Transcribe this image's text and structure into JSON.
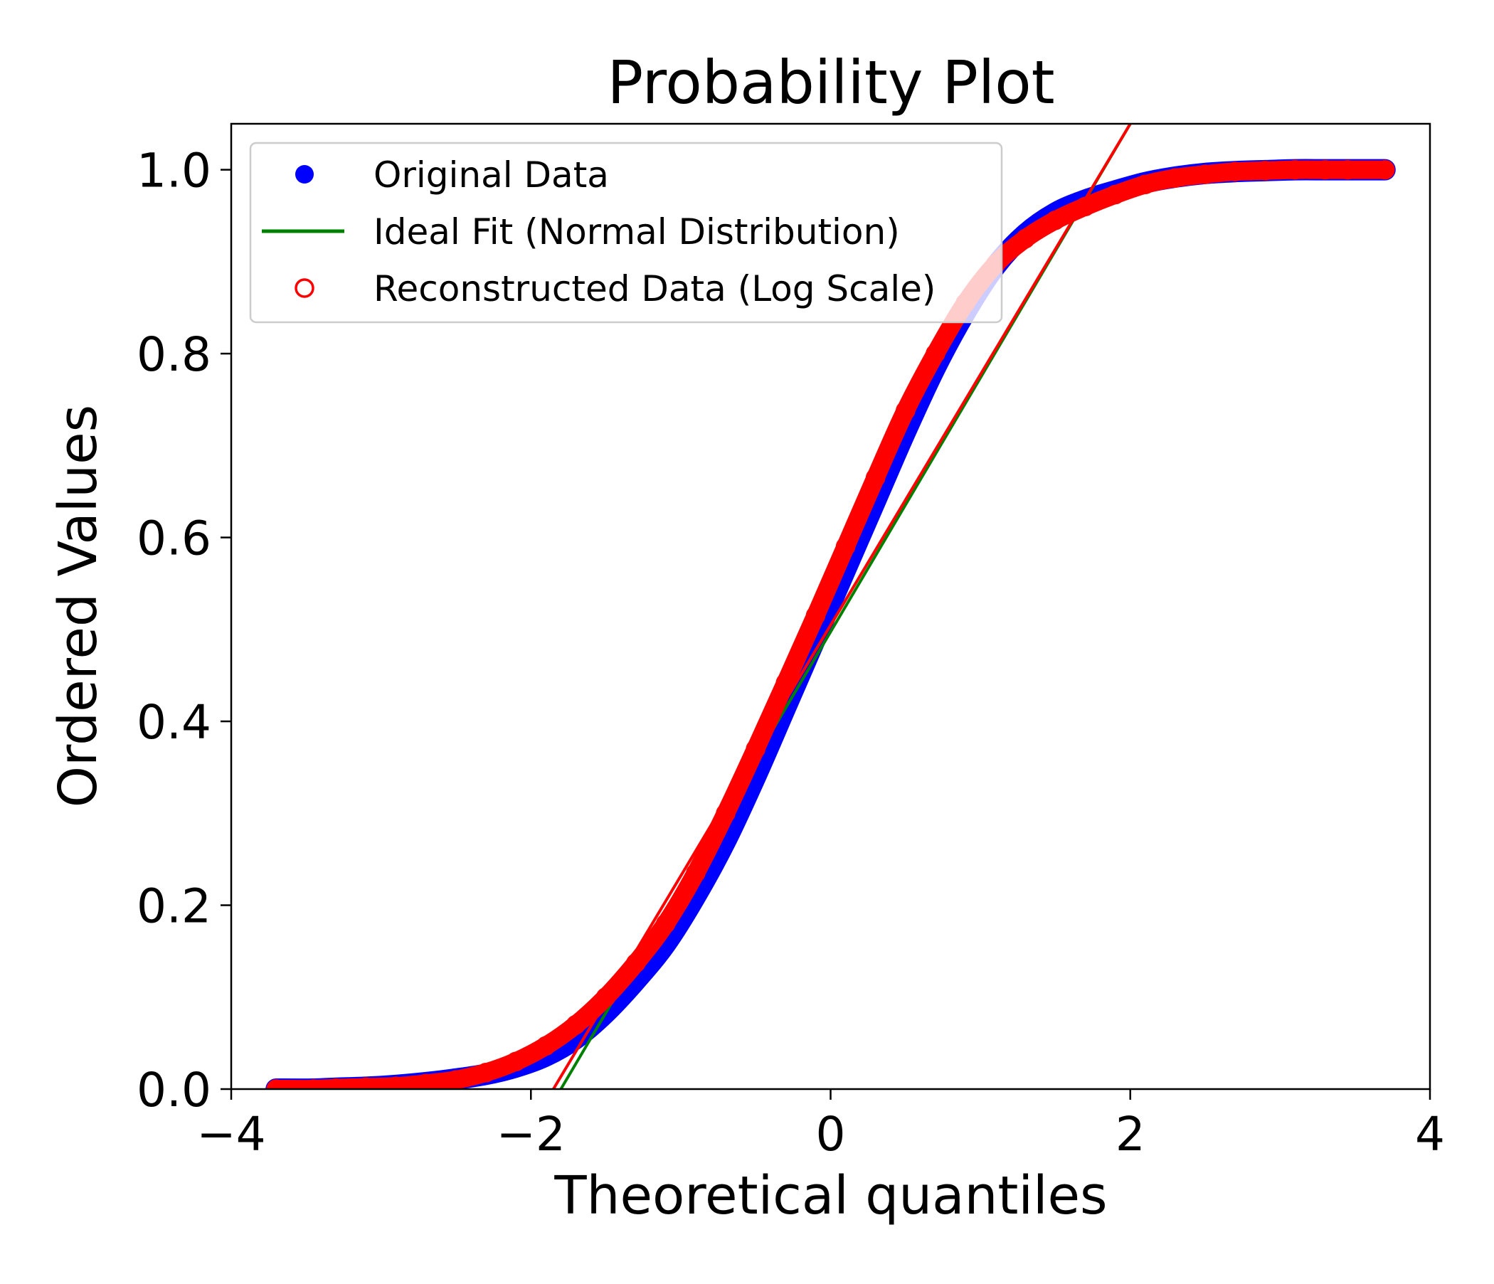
{
  "chart_data": {
    "type": "scatter",
    "title": "Probability Plot",
    "xlabel": "Theoretical quantiles",
    "ylabel": "Ordered Values",
    "xlim": [
      -4,
      4
    ],
    "ylim": [
      0,
      1.05
    ],
    "x_ticks": [
      -4,
      -2,
      0,
      2,
      4
    ],
    "y_ticks": [
      0.0,
      0.2,
      0.4,
      0.6,
      0.8,
      1.0
    ],
    "x_tick_labels": [
      "−4",
      "−2",
      "0",
      "2",
      "4"
    ],
    "y_tick_labels": [
      "0.0",
      "0.2",
      "0.4",
      "0.6",
      "0.8",
      "1.0"
    ],
    "grid": false,
    "legend_position": "upper-left",
    "series": [
      {
        "name": "Original Data",
        "kind": "scatter-filled",
        "color": "#0000ff",
        "x": [
          -3.7,
          -3.45,
          -3.3,
          -3.1,
          -2.9,
          -2.7,
          -2.5,
          -2.3,
          -2.1,
          -1.9,
          -1.7,
          -1.5,
          -1.3,
          -1.1,
          -0.9,
          -0.7,
          -0.5,
          -0.3,
          -0.1,
          0.1,
          0.3,
          0.5,
          0.7,
          0.9,
          1.1,
          1.3,
          1.5,
          1.7,
          1.9,
          2.1,
          2.3,
          2.5,
          2.7,
          2.9,
          3.1,
          3.3,
          3.45,
          3.7
        ],
        "y": [
          0.0,
          0.0,
          0.001,
          0.002,
          0.004,
          0.007,
          0.011,
          0.016,
          0.024,
          0.036,
          0.055,
          0.083,
          0.118,
          0.158,
          0.21,
          0.27,
          0.34,
          0.415,
          0.49,
          0.565,
          0.64,
          0.715,
          0.785,
          0.845,
          0.895,
          0.93,
          0.953,
          0.967,
          0.977,
          0.986,
          0.992,
          0.996,
          0.998,
          0.999,
          1.0,
          1.0,
          1.0,
          1.0
        ]
      },
      {
        "name": "Ideal Fit (Normal Distribution)",
        "kind": "line",
        "color": "#008000",
        "x": [
          -1.8,
          2.0
        ],
        "y": [
          0.0,
          1.05
        ]
      },
      {
        "name": "Reconstructed Data (Log Scale)",
        "kind": "scatter-hollow",
        "color": "#ff0000",
        "x": [
          -3.7,
          -3.45,
          -3.3,
          -3.1,
          -2.9,
          -2.7,
          -2.5,
          -2.3,
          -2.1,
          -1.9,
          -1.7,
          -1.5,
          -1.3,
          -1.1,
          -0.9,
          -0.7,
          -0.5,
          -0.3,
          -0.1,
          0.1,
          0.3,
          0.5,
          0.7,
          0.9,
          1.1,
          1.3,
          1.5,
          1.7,
          1.9,
          2.1,
          2.3,
          2.5,
          2.7,
          2.9,
          3.1,
          3.3,
          3.45,
          3.7
        ],
        "y": [
          0.0,
          0.0,
          0.001,
          0.002,
          0.003,
          0.006,
          0.01,
          0.018,
          0.03,
          0.047,
          0.07,
          0.1,
          0.137,
          0.18,
          0.235,
          0.3,
          0.37,
          0.442,
          0.515,
          0.59,
          0.665,
          0.738,
          0.8,
          0.855,
          0.897,
          0.925,
          0.945,
          0.96,
          0.973,
          0.984,
          0.991,
          0.995,
          0.998,
          0.999,
          1.0,
          1.0,
          1.0,
          1.0
        ]
      },
      {
        "name": "",
        "kind": "line",
        "color": "#ff0000",
        "x": [
          -1.85,
          2.0
        ],
        "y": [
          0.0,
          1.05
        ]
      }
    ]
  }
}
